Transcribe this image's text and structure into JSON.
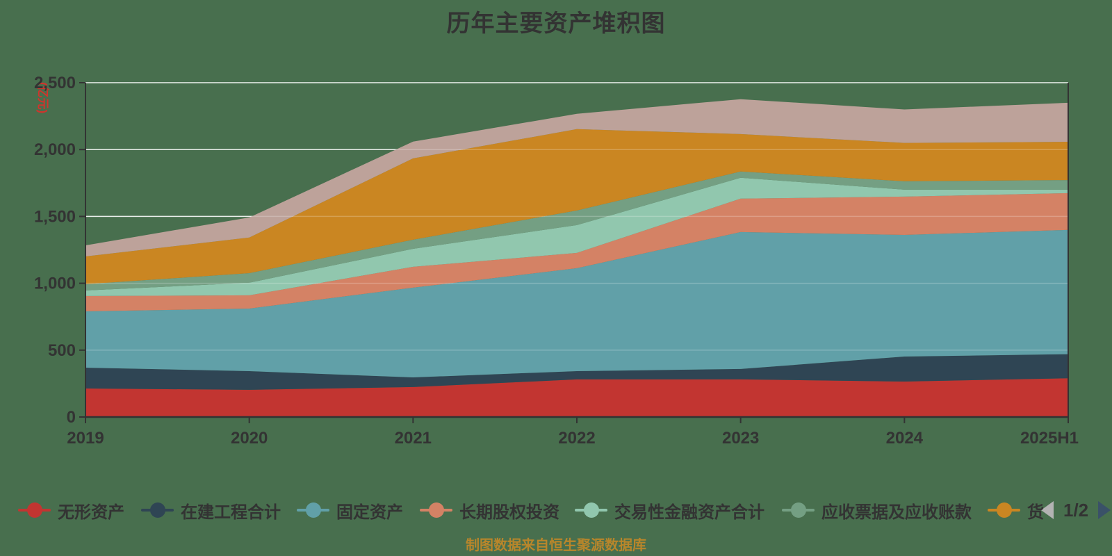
{
  "title": "历年主要资产堆积图",
  "y_axis_unit": "(亿元)",
  "caption": "制图数据来自恒生聚源数据库",
  "background_color": "#486F4E",
  "legend": {
    "pager": {
      "text": "1/2",
      "prev_enabled": false,
      "next_enabled": true,
      "prev_color": "#B3B3B3",
      "next_color": "#3A5168"
    },
    "items": [
      {
        "label": "无形资产",
        "color": "#C23531"
      },
      {
        "label": "在建工程合计",
        "color": "#2F4554"
      },
      {
        "label": "固定资产",
        "color": "#61A0A8"
      },
      {
        "label": "长期股权投资",
        "color": "#D48265"
      },
      {
        "label": "交易性金融资产合计",
        "color": "#91C7AE"
      },
      {
        "label": "应收票据及应收账款",
        "color": "#749F83"
      },
      {
        "label": "货",
        "color": "#CA8622"
      }
    ]
  },
  "chart_data": {
    "type": "area",
    "stacked": true,
    "title": "历年主要资产堆积图",
    "ylabel": "(亿元)",
    "ylim": [
      0,
      2500
    ],
    "y_ticks": [
      0,
      500,
      1000,
      1500,
      2000,
      2500
    ],
    "y_tick_labels": [
      "0",
      "500",
      "1,000",
      "1,500",
      "2,000",
      "2,500"
    ],
    "grid": true,
    "legend_position": "bottom",
    "categories": [
      "2019",
      "2020",
      "2021",
      "2022",
      "2023",
      "2024",
      "2025H1"
    ],
    "series": [
      {
        "name": "无形资产",
        "color": "#C23531",
        "values": [
          213,
          203,
          224,
          281,
          281,
          265,
          290
        ]
      },
      {
        "name": "在建工程合计",
        "color": "#2F4554",
        "values": [
          156,
          140,
          72,
          62,
          78,
          187,
          180
        ]
      },
      {
        "name": "固定资产",
        "color": "#61A0A8",
        "values": [
          421,
          468,
          671,
          770,
          1024,
          910,
          929
        ]
      },
      {
        "name": "长期股权投资",
        "color": "#D48265",
        "values": [
          115,
          99,
          156,
          114,
          250,
          286,
          275
        ]
      },
      {
        "name": "交易性金融资产合计",
        "color": "#91C7AE",
        "values": [
          41,
          94,
          135,
          208,
          156,
          52,
          26
        ]
      },
      {
        "name": "应收票据及应收账款",
        "color": "#749F83",
        "values": [
          47,
          72,
          68,
          109,
          47,
          63,
          72
        ]
      },
      {
        "name": "货",
        "color": "#CA8622",
        "values": [
          208,
          266,
          608,
          609,
          280,
          287,
          286
        ]
      },
      {
        "name": "",
        "color": "#BDA29A",
        "values": [
          83,
          150,
          125,
          114,
          261,
          250,
          292
        ]
      }
    ]
  }
}
